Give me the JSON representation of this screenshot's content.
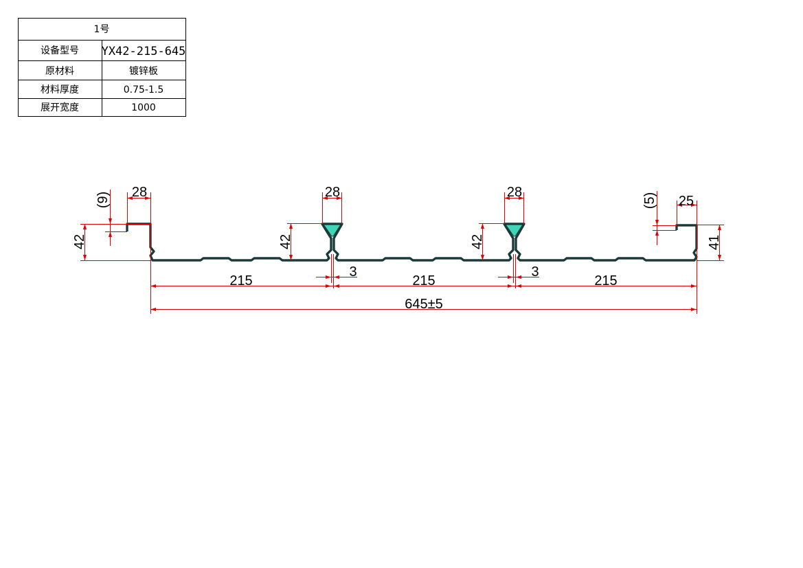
{
  "spec_table": {
    "title": "1号",
    "rows": [
      {
        "label": "设备型号",
        "value": "YX42-215-645"
      },
      {
        "label": "原材料",
        "value": "镀锌板"
      },
      {
        "label": "材料厚度",
        "value": "0.75-1.5"
      },
      {
        "label": "展开宽度",
        "value": "1000"
      }
    ]
  },
  "dimensions": {
    "left_lip_width": "28",
    "left_lip_depth": "(9)",
    "left_height": "42",
    "rib1_width": "28",
    "rib1_height": "42",
    "rib1_gap": "3",
    "rib2_width": "28",
    "rib2_height": "42",
    "rib2_gap": "3",
    "right_lip_width": "25",
    "right_lip_depth": "(5)",
    "right_height": "41",
    "pitch_1": "215",
    "pitch_2": "215",
    "pitch_3": "215",
    "overall_width": "645±5"
  },
  "colors": {
    "dimension_line": "#e00000",
    "profile_fill": "#3fd6b8",
    "profile_outline": "#1a3a3a"
  }
}
